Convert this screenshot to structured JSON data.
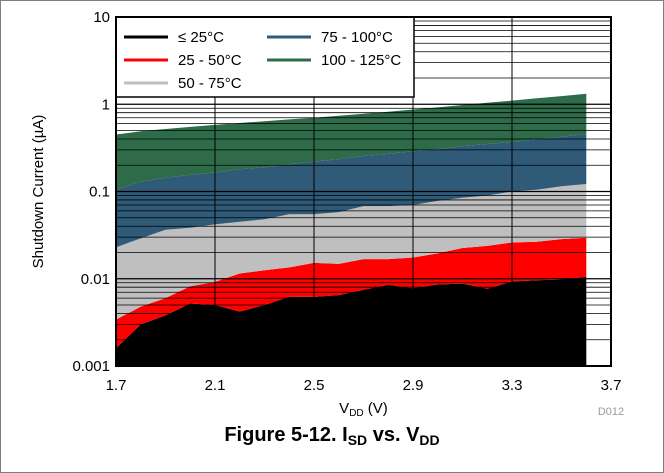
{
  "chart_data": {
    "type": "area",
    "xlabel": {
      "main": "V",
      "sub": "DD",
      "unit": " (V)"
    },
    "ylabel": "Shutdown Current (µA)",
    "xlim": [
      1.7,
      3.7
    ],
    "ylim": [
      0.001,
      10
    ],
    "yscale": "log",
    "xticks": [
      "1.7",
      "2.1",
      "2.5",
      "2.9",
      "3.3",
      "3.7"
    ],
    "yticks": [
      "0.001",
      "0.01",
      "0.1",
      "1",
      "10"
    ],
    "grid": true,
    "legend_position": "top-left",
    "note": "D012",
    "x": [
      1.7,
      1.8,
      1.9,
      2.0,
      2.1,
      2.2,
      2.3,
      2.4,
      2.5,
      2.6,
      2.7,
      2.8,
      2.9,
      3.0,
      3.1,
      3.2,
      3.3,
      3.4,
      3.5,
      3.6
    ],
    "series": [
      {
        "name": "≤ 25°C",
        "color": "#000000",
        "upper": [
          0.0016,
          0.003,
          0.0038,
          0.0052,
          0.005,
          0.0042,
          0.005,
          0.0062,
          0.0062,
          0.0065,
          0.0075,
          0.0085,
          0.0078,
          0.0086,
          0.0088,
          0.0077,
          0.0093,
          0.0096,
          0.0098,
          0.0105
        ]
      },
      {
        "name": "25 - 50°C",
        "color": "#ff0000",
        "upper": [
          0.0034,
          0.0048,
          0.006,
          0.0082,
          0.0092,
          0.0115,
          0.0125,
          0.0135,
          0.0152,
          0.0148,
          0.0168,
          0.0168,
          0.0175,
          0.0195,
          0.0225,
          0.0238,
          0.026,
          0.0265,
          0.0285,
          0.0295
        ]
      },
      {
        "name": "50 - 75°C",
        "color": "#bfbfbf",
        "upper": [
          0.023,
          0.029,
          0.0365,
          0.0385,
          0.042,
          0.045,
          0.048,
          0.055,
          0.055,
          0.058,
          0.068,
          0.068,
          0.07,
          0.078,
          0.085,
          0.09,
          0.1,
          0.105,
          0.115,
          0.122
        ]
      },
      {
        "name": "75 - 100°C",
        "color": "#2f5a78",
        "upper": [
          0.105,
          0.13,
          0.143,
          0.155,
          0.165,
          0.18,
          0.19,
          0.205,
          0.22,
          0.235,
          0.255,
          0.27,
          0.29,
          0.305,
          0.33,
          0.35,
          0.37,
          0.395,
          0.425,
          0.455
        ]
      },
      {
        "name": "100 - 125°C",
        "color": "#2e6b48",
        "upper": [
          0.45,
          0.49,
          0.52,
          0.55,
          0.58,
          0.61,
          0.64,
          0.67,
          0.7,
          0.74,
          0.78,
          0.82,
          0.87,
          0.92,
          0.98,
          1.04,
          1.1,
          1.17,
          1.24,
          1.32
        ]
      }
    ]
  },
  "caption": {
    "main": "Figure 5-12. I",
    "sub1": "SD",
    "mid": " vs. V",
    "sub2": "DD"
  }
}
